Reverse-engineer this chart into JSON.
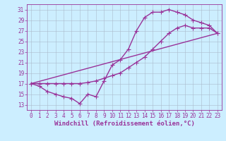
{
  "xlabel": "Windchill (Refroidissement éolien,°C)",
  "bg_color": "#cceeff",
  "line_color": "#993399",
  "grid_color": "#aabbcc",
  "xlim": [
    -0.5,
    23.5
  ],
  "ylim": [
    12,
    32
  ],
  "xticks": [
    0,
    1,
    2,
    3,
    4,
    5,
    6,
    7,
    8,
    9,
    10,
    11,
    12,
    13,
    14,
    15,
    16,
    17,
    18,
    19,
    20,
    21,
    22,
    23
  ],
  "yticks": [
    13,
    15,
    17,
    19,
    21,
    23,
    25,
    27,
    29,
    31
  ],
  "curve1_x": [
    0,
    1,
    2,
    3,
    4,
    5,
    6,
    7,
    8,
    9,
    10,
    11,
    12,
    13,
    14,
    15,
    16,
    17,
    18,
    19,
    20,
    21,
    22,
    23
  ],
  "curve1_y": [
    17.0,
    16.5,
    15.5,
    15.0,
    14.5,
    14.2,
    13.2,
    15.0,
    14.5,
    17.5,
    20.5,
    21.5,
    23.5,
    27.0,
    29.5,
    30.5,
    30.5,
    31.0,
    30.5,
    30.0,
    29.0,
    28.5,
    28.0,
    26.5
  ],
  "curve2_x": [
    0,
    1,
    2,
    3,
    4,
    5,
    6,
    7,
    8,
    9,
    10,
    11,
    12,
    13,
    14,
    15,
    16,
    17,
    18,
    19,
    20,
    21,
    22,
    23
  ],
  "curve2_y": [
    17.0,
    17.0,
    17.0,
    17.0,
    17.0,
    17.0,
    17.0,
    17.2,
    17.5,
    18.0,
    18.5,
    19.0,
    20.0,
    21.0,
    22.0,
    23.5,
    25.0,
    26.5,
    27.5,
    28.0,
    27.5,
    27.5,
    27.5,
    26.5
  ],
  "curve3_x": [
    0,
    23
  ],
  "curve3_y": [
    17.0,
    26.5
  ],
  "marker": "+",
  "markersize": 4,
  "linewidth": 1.0,
  "tick_fontsize": 5.5,
  "label_fontsize": 6.5
}
